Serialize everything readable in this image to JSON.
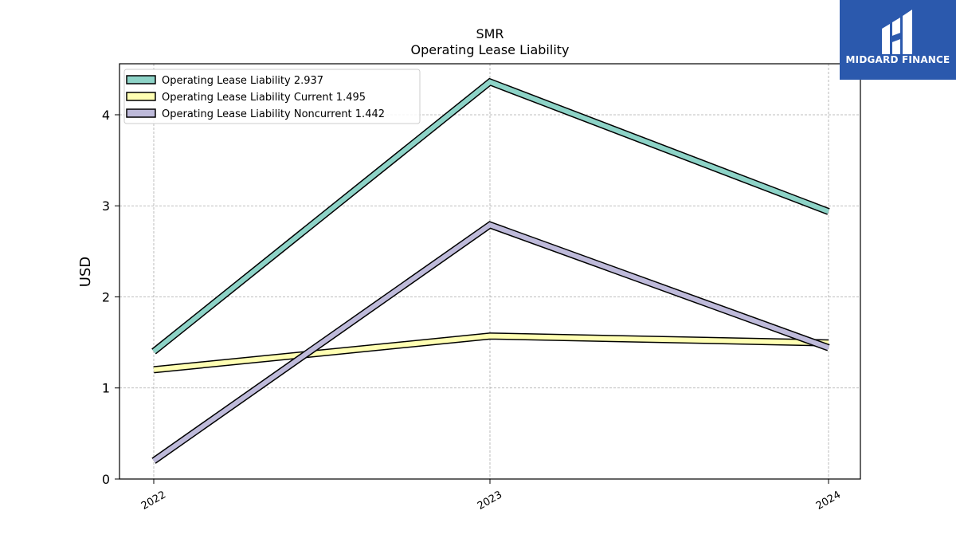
{
  "chart_data": {
    "type": "line",
    "title": "SMR",
    "subtitle": "Operating Lease Liability",
    "xlabel": "",
    "ylabel": "USD",
    "categories": [
      "2022",
      "2023",
      "2024"
    ],
    "yticks": [
      "0",
      "1",
      "2",
      "3",
      "4"
    ],
    "ylim": [
      0,
      4.56
    ],
    "grid": true,
    "legend_position": "top-left",
    "series": [
      {
        "name": "Operating Lease Liability",
        "legend_label": "Operating Lease Liability  2.937",
        "values": [
          1.4,
          4.36,
          2.937
        ],
        "color": "#8dd3c7"
      },
      {
        "name": "Operating Lease Liability Current",
        "legend_label": "Operating Lease Liability Current  1.495",
        "values": [
          1.2,
          1.57,
          1.495
        ],
        "color": "#ffffb3"
      },
      {
        "name": "Operating Lease Liability Noncurrent",
        "legend_label": "Operating Lease Liability Noncurrent  1.442",
        "values": [
          0.2,
          2.79,
          1.442
        ],
        "color": "#bebada"
      }
    ]
  },
  "logo": {
    "text": "MIDGARD FINANCE",
    "background": "#2b59ad",
    "icon": "midgard-logo-icon"
  }
}
